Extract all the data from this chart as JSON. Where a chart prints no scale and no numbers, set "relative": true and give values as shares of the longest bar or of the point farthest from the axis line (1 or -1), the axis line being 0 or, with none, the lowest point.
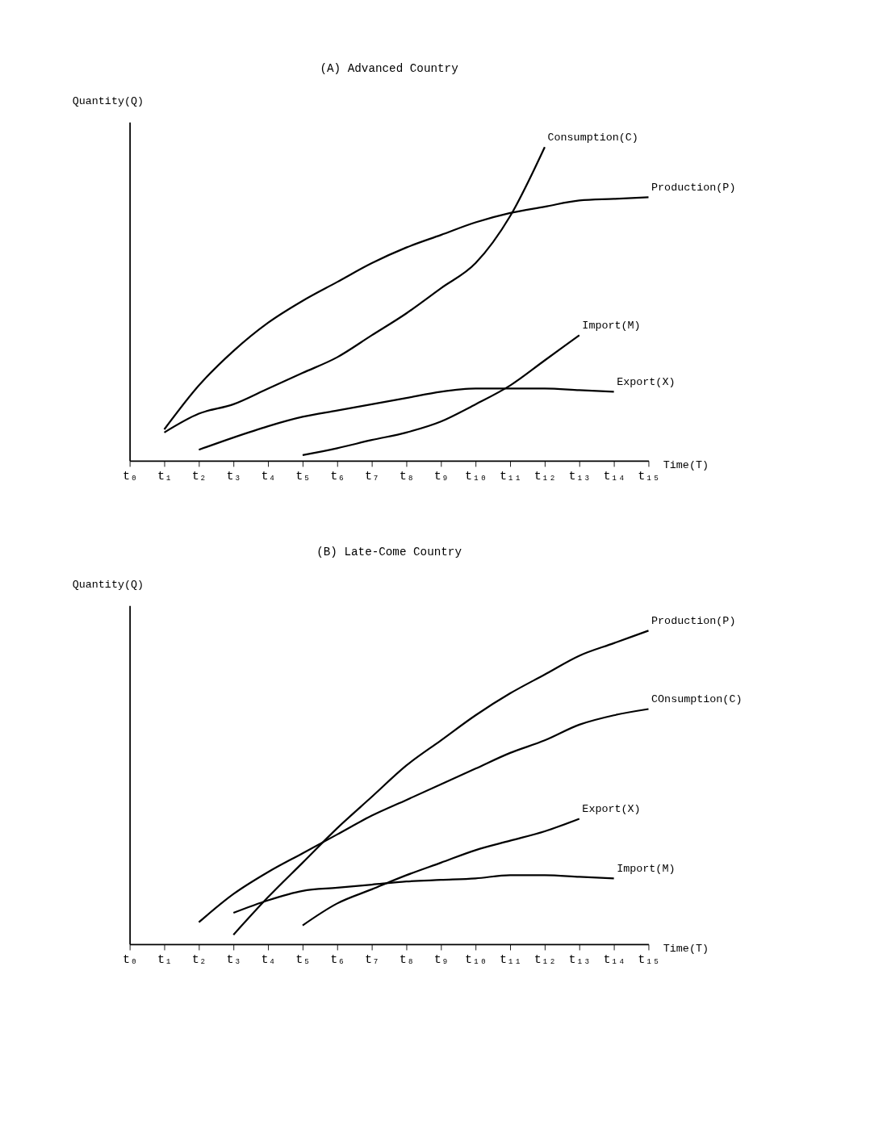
{
  "chart_data": [
    {
      "type": "line",
      "title": "(A) Advanced Country",
      "xlabel": "Time(T)",
      "ylabel": "Quantity(Q)",
      "relative": true,
      "legend": false,
      "categories": [
        "t₀",
        "t₁",
        "t₂",
        "t₃",
        "t₄",
        "t₅",
        "t₆",
        "t₇",
        "t₈",
        "t₉",
        "t₁₀",
        "t₁₁",
        "t₁₂",
        "t₁₃",
        "t₁₄",
        "t₁₅"
      ],
      "series": [
        {
          "name": "Consumption(C)",
          "color": "#000000",
          "values": [
            null,
            0.09,
            0.15,
            0.18,
            0.23,
            0.28,
            0.33,
            0.4,
            0.47,
            0.55,
            0.63,
            0.78,
            1.0,
            null,
            null,
            null
          ]
        },
        {
          "name": "Production(P)",
          "color": "#000000",
          "values": [
            null,
            0.1,
            0.24,
            0.35,
            0.44,
            0.51,
            0.57,
            0.63,
            0.68,
            0.72,
            0.76,
            0.79,
            0.81,
            0.83,
            0.835,
            0.84
          ]
        },
        {
          "name": "Import(M)",
          "color": "#000000",
          "values": [
            null,
            null,
            null,
            null,
            null,
            0.018,
            0.04,
            0.066,
            0.09,
            0.125,
            0.18,
            0.24,
            0.32,
            0.4,
            null,
            null
          ]
        },
        {
          "name": "Export(X)",
          "color": "#000000",
          "values": [
            null,
            null,
            0.035,
            0.074,
            0.11,
            0.14,
            0.16,
            0.18,
            0.2,
            0.22,
            0.23,
            0.23,
            0.23,
            0.225,
            0.22,
            null
          ]
        }
      ]
    },
    {
      "type": "line",
      "title": "(B) Late-Come Country",
      "xlabel": "Time(T)",
      "ylabel": "Quantity(Q)",
      "relative": true,
      "legend": false,
      "categories": [
        "t₀",
        "t₁",
        "t₂",
        "t₃",
        "t₄",
        "t₅",
        "t₆",
        "t₇",
        "t₈",
        "t₉",
        "t₁₀",
        "t₁₁",
        "t₁₂",
        "t₁₃",
        "t₁₄",
        "t₁₅"
      ],
      "series": [
        {
          "name": "Production(P)",
          "color": "#000000",
          "values": [
            null,
            null,
            null,
            0.03,
            0.15,
            0.26,
            0.37,
            0.47,
            0.57,
            0.65,
            0.73,
            0.8,
            0.86,
            0.92,
            0.96,
            1.0
          ]
        },
        {
          "name": "COnsumption(C)",
          "color": "#000000",
          "values": [
            null,
            null,
            0.07,
            0.16,
            0.23,
            0.29,
            0.35,
            0.41,
            0.46,
            0.51,
            0.56,
            0.61,
            0.65,
            0.7,
            0.73,
            0.75
          ]
        },
        {
          "name": "Export(X)",
          "color": "#000000",
          "values": [
            null,
            null,
            null,
            null,
            null,
            0.06,
            0.13,
            0.175,
            0.22,
            0.26,
            0.3,
            0.33,
            0.36,
            0.4,
            null,
            null
          ]
        },
        {
          "name": "Import(M)",
          "color": "#000000",
          "values": [
            null,
            null,
            null,
            0.1,
            0.14,
            0.17,
            0.18,
            0.19,
            0.2,
            0.205,
            0.21,
            0.22,
            0.22,
            0.215,
            0.21,
            null
          ]
        }
      ]
    }
  ]
}
